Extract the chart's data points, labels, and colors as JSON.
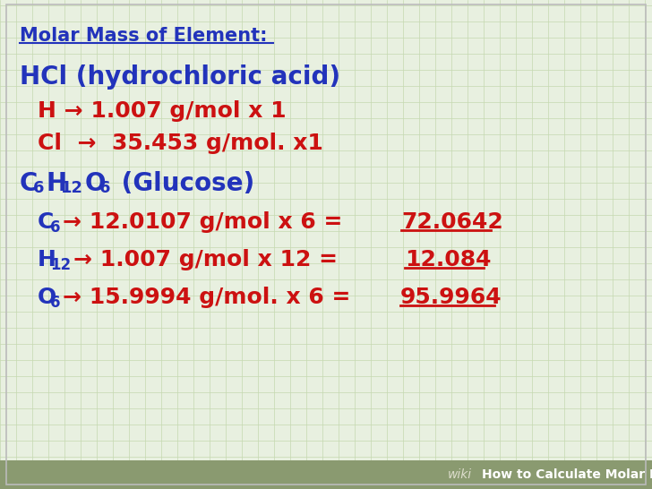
{
  "bg_color": "#e8f0e0",
  "grid_color": "#c5d8b0",
  "blue": "#2233bb",
  "red": "#cc1111",
  "footer_bg": "#8a9a70",
  "title": "Molar Mass of Element:",
  "footer_wiki": "wiki",
  "footer_text": "How to Calculate Molar Mass",
  "hcl_label": "HCl (hydrochloric acid)",
  "h_line": "H → 1.007 g/mol x 1",
  "cl_line": "Cl  →  35.453 g/mol. x1",
  "c6_result": "72.0642",
  "h12_result": "12.084",
  "o6_result": "95.9964",
  "figw": 7.28,
  "figh": 5.46,
  "dpi": 100
}
